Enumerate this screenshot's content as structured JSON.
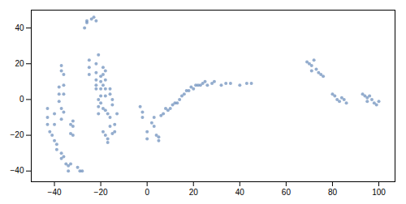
{
  "chart_data": {
    "type": "scatter",
    "x": [
      -43,
      -43,
      -43,
      -42,
      -41,
      -40,
      -40,
      -40,
      -39,
      -39,
      -38,
      -38,
      -38,
      -37,
      -37,
      -37,
      -37,
      -37,
      -37,
      -36,
      -36,
      -36,
      -36,
      -36,
      -35,
      -34,
      -34,
      -33,
      -33,
      -33,
      -32,
      -32,
      -32,
      -30,
      -29,
      -28,
      -27,
      -26,
      -26,
      -25,
      -25,
      -25,
      -24,
      -23,
      -22,
      -22,
      -22,
      -22,
      -22,
      -22,
      -21,
      -21,
      -21,
      -21,
      -20,
      -20,
      -20,
      -20,
      -20,
      -19,
      -19,
      -19,
      -19,
      -19,
      -18,
      -18,
      -18,
      -18,
      -18,
      -18,
      -17,
      -17,
      -17,
      -16,
      -16,
      -16,
      -16,
      -15,
      -15,
      -15,
      -14,
      -14,
      -13,
      -3,
      -2,
      -2,
      0,
      0,
      2,
      3,
      3,
      4,
      5,
      5,
      6,
      7,
      8,
      9,
      10,
      11,
      12,
      13,
      14,
      15,
      16,
      17,
      18,
      19,
      20,
      21,
      22,
      23,
      24,
      25,
      26,
      28,
      29,
      32,
      34,
      36,
      40,
      43,
      45,
      69,
      70,
      71,
      71,
      72,
      73,
      74,
      75,
      76,
      80,
      81,
      82,
      83,
      84,
      85,
      86,
      93,
      94,
      95,
      95,
      96,
      97,
      98,
      99,
      100
    ],
    "values": [
      -5,
      -10,
      -14,
      -18,
      -20,
      -8,
      -14,
      -23,
      -25,
      -28,
      7,
      3,
      -1,
      19,
      16,
      -5,
      -11,
      -30,
      -33,
      14,
      8,
      3,
      -7,
      -32,
      -36,
      -37,
      -40,
      -14,
      -19,
      -36,
      -12,
      -15,
      -20,
      -38,
      -40,
      -40,
      40,
      43,
      44,
      22,
      18,
      14,
      45,
      46,
      44,
      20,
      15,
      11,
      8,
      6,
      25,
      0,
      -4,
      -8,
      13,
      10,
      6,
      2,
      -2,
      18,
      14,
      8,
      -5,
      -18,
      16,
      11,
      6,
      2,
      -6,
      -20,
      -8,
      -22,
      -24,
      6,
      3,
      -10,
      -15,
      0,
      -3,
      -19,
      -14,
      -18,
      -8,
      -4,
      -7,
      -10,
      -18,
      -22,
      -13,
      -10,
      -15,
      -20,
      -21,
      -23,
      -9,
      -8,
      -5,
      -6,
      -5,
      -3,
      -2,
      -2,
      0,
      2,
      3,
      5,
      5,
      7,
      6,
      8,
      8,
      8,
      9,
      10,
      8,
      9,
      10,
      8,
      9,
      9,
      8,
      9,
      9,
      21,
      20,
      19,
      16,
      22,
      17,
      15,
      14,
      13,
      3,
      2,
      0,
      -1,
      1,
      0,
      -2,
      3,
      2,
      1,
      -1,
      2,
      0,
      -2,
      -3,
      -1
    ],
    "color": "#7092be",
    "xlim": [
      -50,
      107
    ],
    "ylim": [
      -46,
      50
    ],
    "xticks": [
      -40,
      -20,
      0,
      20,
      40,
      60,
      80,
      100
    ],
    "yticks": [
      -40,
      -20,
      0,
      20,
      40
    ],
    "grid": false
  }
}
